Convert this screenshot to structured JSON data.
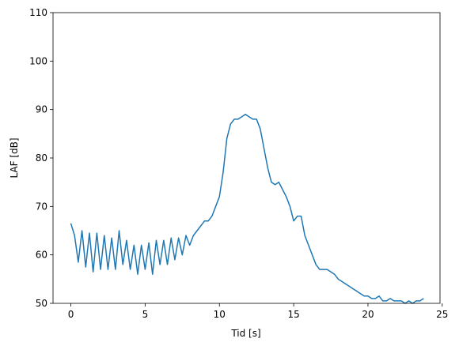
{
  "chart_data": {
    "type": "line",
    "xlabel": "Tid [s]",
    "ylabel": "LAF [dB]",
    "x": [
      0,
      0.25,
      0.5,
      0.75,
      1,
      1.25,
      1.5,
      1.75,
      2,
      2.25,
      2.5,
      2.75,
      3,
      3.25,
      3.5,
      3.75,
      4,
      4.25,
      4.5,
      4.75,
      5,
      5.25,
      5.5,
      5.75,
      6,
      6.25,
      6.5,
      6.75,
      7,
      7.25,
      7.5,
      7.75,
      8,
      8.25,
      8.5,
      8.75,
      9,
      9.25,
      9.5,
      9.75,
      10,
      10.25,
      10.5,
      10.75,
      11,
      11.25,
      11.5,
      11.75,
      12,
      12.25,
      12.5,
      12.75,
      13,
      13.25,
      13.5,
      13.75,
      14,
      14.25,
      14.5,
      14.75,
      15,
      15.25,
      15.5,
      15.75,
      16,
      16.25,
      16.5,
      16.75,
      17,
      17.25,
      17.5,
      17.75,
      18,
      18.25,
      18.5,
      18.75,
      19,
      19.25,
      19.5,
      19.75,
      20,
      20.25,
      20.5,
      20.75,
      21,
      21.25,
      21.5,
      21.75,
      22,
      22.25,
      22.5,
      22.75,
      23,
      23.25,
      23.5,
      23.75
    ],
    "series": [
      {
        "name": "LAF",
        "color": "#1f77b4",
        "values": [
          66.5,
          64,
          58.5,
          65,
          57.5,
          64.5,
          56.5,
          64.5,
          57,
          64,
          57,
          63.5,
          57,
          65,
          58,
          63,
          57,
          62,
          56,
          62,
          57,
          62.5,
          56,
          63,
          58,
          63,
          58,
          63.5,
          59,
          63.5,
          60,
          64,
          62,
          64,
          65,
          66,
          67,
          67,
          68,
          70,
          72,
          77,
          84,
          87,
          88,
          88,
          88.5,
          89,
          88.5,
          88,
          88,
          86,
          82,
          78,
          75,
          74.5,
          75,
          73.5,
          72,
          70,
          67,
          68,
          68,
          64,
          62,
          60,
          58,
          57,
          57,
          57,
          56.5,
          56,
          55,
          54.5,
          54,
          53.5,
          53,
          52.5,
          52,
          51.5,
          51.5,
          51,
          51,
          51.5,
          50.5,
          50.5,
          51,
          50.5,
          50.5,
          50.5,
          50,
          50.5,
          50,
          50.5,
          50.5,
          51
        ]
      }
    ],
    "xlim": [
      -1.2,
      24.85
    ],
    "ylim": [
      50,
      110
    ],
    "xticks": [
      0,
      5,
      10,
      15,
      20,
      25
    ],
    "yticks": [
      50,
      60,
      70,
      80,
      90,
      100,
      110
    ]
  }
}
